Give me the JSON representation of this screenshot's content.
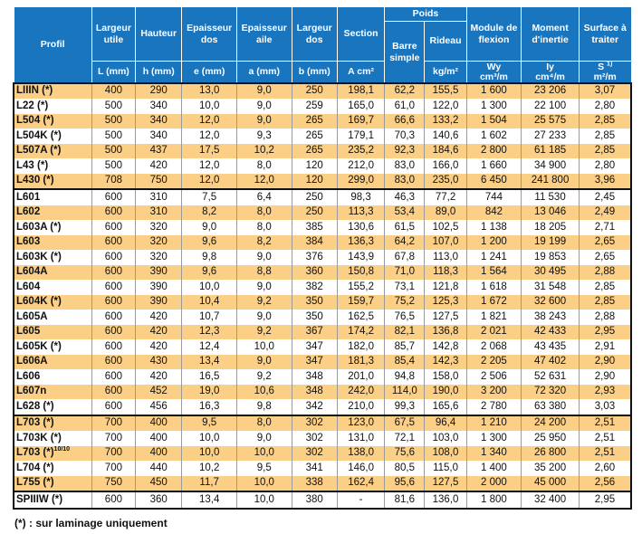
{
  "header": {
    "profil": "Profil",
    "largeur_utile": "Largeur utile",
    "hauteur": "Hauteur",
    "epaisseur_dos": "Epaisseur dos",
    "epaisseur_aile": "Epaisseur aile",
    "largeur_dos": "Largeur dos",
    "section": "Section",
    "poids": "Poids",
    "barre_simple": "Barre simple",
    "rideau": "Rideau",
    "module": "Module de flexion",
    "moment": "Moment d'inertie",
    "surface": "Surface à traiter",
    "u_L": "L (mm)",
    "u_h": "h (mm)",
    "u_e": "e (mm)",
    "u_a": "a (mm)",
    "u_b": "b (mm)",
    "u_A": "A cm²",
    "u_kgm": "kg/m",
    "u_kgm2": "kg/m²",
    "u_W": "Wy",
    "u_Wunit": "cm³/m",
    "u_I": "Iy",
    "u_Iunit": "cm⁴/m",
    "u_S": "S",
    "u_S_sup": "1)",
    "u_Sunit": "m²/m"
  },
  "rows": [
    {
      "profil": "LIIIN (*)",
      "L": "400",
      "h": "290",
      "e": "13,0",
      "a": "9,0",
      "b": "250",
      "A": "198,1",
      "bs": "62,2",
      "r": "155,5",
      "w": "1 600",
      "i": "23 206",
      "s": "3,07"
    },
    {
      "profil": "L22 (*)",
      "L": "500",
      "h": "340",
      "e": "10,0",
      "a": "9,0",
      "b": "259",
      "A": "165,0",
      "bs": "61,0",
      "r": "122,0",
      "w": "1 300",
      "i": "22 100",
      "s": "2,80"
    },
    {
      "profil": "L504 (*)",
      "L": "500",
      "h": "340",
      "e": "12,0",
      "a": "9,0",
      "b": "265",
      "A": "169,7",
      "bs": "66,6",
      "r": "133,2",
      "w": "1 504",
      "i": "25 575",
      "s": "2,85"
    },
    {
      "profil": "L504K (*)",
      "L": "500",
      "h": "340",
      "e": "12,0",
      "a": "9,3",
      "b": "265",
      "A": "179,1",
      "bs": "70,3",
      "r": "140,6",
      "w": "1 602",
      "i": "27 233",
      "s": "2,85"
    },
    {
      "profil": "L507A (*)",
      "L": "500",
      "h": "437",
      "e": "17,5",
      "a": "10,2",
      "b": "265",
      "A": "235,2",
      "bs": "92,3",
      "r": "184,6",
      "w": "2 800",
      "i": "61 185",
      "s": "2,85"
    },
    {
      "profil": "L43 (*)",
      "L": "500",
      "h": "420",
      "e": "12,0",
      "a": "8,0",
      "b": "120",
      "A": "212,0",
      "bs": "83,0",
      "r": "166,0",
      "w": "1 660",
      "i": "34 900",
      "s": "2,80"
    },
    {
      "profil": "L430 (*)",
      "L": "708",
      "h": "750",
      "e": "12,0",
      "a": "12,0",
      "b": "120",
      "A": "299,0",
      "bs": "83,0",
      "r": "235,0",
      "w": "6 450",
      "i": "241 800",
      "s": "3,96"
    },
    {
      "profil": "L601",
      "L": "600",
      "h": "310",
      "e": "7,5",
      "a": "6,4",
      "b": "250",
      "A": "98,3",
      "bs": "46,3",
      "r": "77,2",
      "w": "744",
      "i": "11 530",
      "s": "2,45"
    },
    {
      "profil": "L602",
      "L": "600",
      "h": "310",
      "e": "8,2",
      "a": "8,0",
      "b": "250",
      "A": "113,3",
      "bs": "53,4",
      "r": "89,0",
      "w": "842",
      "i": "13 046",
      "s": "2,49"
    },
    {
      "profil": "L603A (*)",
      "L": "600",
      "h": "320",
      "e": "9,0",
      "a": "8,0",
      "b": "385",
      "A": "130,6",
      "bs": "61,5",
      "r": "102,5",
      "w": "1 138",
      "i": "18 205",
      "s": "2,71"
    },
    {
      "profil": "L603",
      "L": "600",
      "h": "320",
      "e": "9,6",
      "a": "8,2",
      "b": "384",
      "A": "136,3",
      "bs": "64,2",
      "r": "107,0",
      "w": "1 200",
      "i": "19 199",
      "s": "2,65"
    },
    {
      "profil": "L603K (*)",
      "L": "600",
      "h": "320",
      "e": "9,8",
      "a": "9,0",
      "b": "376",
      "A": "143,9",
      "bs": "67,8",
      "r": "113,0",
      "w": "1 241",
      "i": "19 853",
      "s": "2,65"
    },
    {
      "profil": "L604A",
      "L": "600",
      "h": "390",
      "e": "9,6",
      "a": "8,8",
      "b": "360",
      "A": "150,8",
      "bs": "71,0",
      "r": "118,3",
      "w": "1 564",
      "i": "30 495",
      "s": "2,88"
    },
    {
      "profil": "L604",
      "L": "600",
      "h": "390",
      "e": "10,0",
      "a": "9,0",
      "b": "382",
      "A": "155,2",
      "bs": "73,1",
      "r": "121,8",
      "w": "1 618",
      "i": "31 548",
      "s": "2,85"
    },
    {
      "profil": "L604K (*)",
      "L": "600",
      "h": "390",
      "e": "10,4",
      "a": "9,2",
      "b": "350",
      "A": "159,7",
      "bs": "75,2",
      "r": "125,3",
      "w": "1 672",
      "i": "32 600",
      "s": "2,85"
    },
    {
      "profil": "L605A",
      "L": "600",
      "h": "420",
      "e": "10,7",
      "a": "9,0",
      "b": "350",
      "A": "162,5",
      "bs": "76,5",
      "r": "127,5",
      "w": "1 821",
      "i": "38 243",
      "s": "2,88"
    },
    {
      "profil": "L605",
      "L": "600",
      "h": "420",
      "e": "12,3",
      "a": "9,2",
      "b": "367",
      "A": "174,2",
      "bs": "82,1",
      "r": "136,8",
      "w": "2 021",
      "i": "42 433",
      "s": "2,95"
    },
    {
      "profil": "L605K (*)",
      "L": "600",
      "h": "420",
      "e": "12,4",
      "a": "10,0",
      "b": "347",
      "A": "182,0",
      "bs": "85,7",
      "r": "142,8",
      "w": "2 068",
      "i": "43 435",
      "s": "2,91"
    },
    {
      "profil": "L606A",
      "L": "600",
      "h": "430",
      "e": "13,4",
      "a": "9,0",
      "b": "347",
      "A": "181,3",
      "bs": "85,4",
      "r": "142,3",
      "w": "2 205",
      "i": "47 402",
      "s": "2,90"
    },
    {
      "profil": "L606",
      "L": "600",
      "h": "420",
      "e": "16,5",
      "a": "9,2",
      "b": "348",
      "A": "201,0",
      "bs": "94,8",
      "r": "158,0",
      "w": "2 506",
      "i": "52 631",
      "s": "2,90"
    },
    {
      "profil": "L607n",
      "L": "600",
      "h": "452",
      "e": "19,0",
      "a": "10,6",
      "b": "348",
      "A": "242,0",
      "bs": "114,0",
      "r": "190,0",
      "w": "3 200",
      "i": "72 320",
      "s": "2,93"
    },
    {
      "profil": "L628 (*)",
      "L": "600",
      "h": "456",
      "e": "16,3",
      "a": "9,8",
      "b": "342",
      "A": "210,0",
      "bs": "99,3",
      "r": "165,6",
      "w": "2 780",
      "i": "63 380",
      "s": "3,03"
    },
    {
      "profil": "L703 (*)",
      "L": "700",
      "h": "400",
      "e": "9,5",
      "a": "8,0",
      "b": "302",
      "A": "123,0",
      "bs": "67,5",
      "r": "96,4",
      "w": "1 210",
      "i": "24 200",
      "s": "2,51"
    },
    {
      "profil": "L703K (*)",
      "L": "700",
      "h": "400",
      "e": "10,0",
      "a": "9,0",
      "b": "302",
      "A": "131,0",
      "bs": "72,1",
      "r": "103,0",
      "w": "1 300",
      "i": "25 950",
      "s": "2,51"
    },
    {
      "profil": "L703 (*)",
      "sup": "10/10",
      "L": "700",
      "h": "400",
      "e": "10,0",
      "a": "10,0",
      "b": "302",
      "A": "138,0",
      "bs": "75,6",
      "r": "108,0",
      "w": "1 340",
      "i": "26 800",
      "s": "2,51"
    },
    {
      "profil": "L704 (*)",
      "L": "700",
      "h": "440",
      "e": "10,2",
      "a": "9,5",
      "b": "341",
      "A": "146,0",
      "bs": "80,5",
      "r": "115,0",
      "w": "1 400",
      "i": "35 200",
      "s": "2,60"
    },
    {
      "profil": "L755 (*)",
      "L": "750",
      "h": "450",
      "e": "11,7",
      "a": "10,0",
      "b": "338",
      "A": "162,4",
      "bs": "95,6",
      "r": "127,5",
      "w": "2 000",
      "i": "45 000",
      "s": "2,56"
    },
    {
      "profil": "SPIIIW (*)",
      "L": "600",
      "h": "360",
      "e": "13,4",
      "a": "10,0",
      "b": "380",
      "A": "-",
      "bs": "81,6",
      "r": "136,0",
      "w": "1 800",
      "i": "32 400",
      "s": "2,95"
    }
  ],
  "footnote": "(*) : sur laminage uniquement",
  "colors": {
    "header": "#1a75bf",
    "row_highlight": "#fbcf86"
  }
}
